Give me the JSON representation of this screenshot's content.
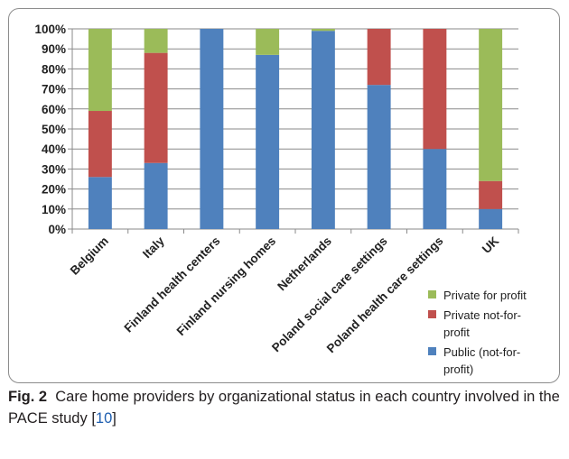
{
  "chart_data": {
    "type": "bar",
    "stacked": true,
    "categories": [
      "Belgium",
      "Italy",
      "Finland health centers",
      "Finland nursing homes",
      "Netherlands",
      "Poland social care settings",
      "Poland health care settings",
      "UK"
    ],
    "series": [
      {
        "name": "Public (not-for-profit)",
        "color": "#4f81bd",
        "values": [
          26,
          33,
          100,
          87,
          99,
          72,
          40,
          10
        ]
      },
      {
        "name": "Private not-for-profit",
        "color": "#c0504d",
        "values": [
          33,
          55,
          0,
          0,
          0,
          28,
          60,
          14
        ]
      },
      {
        "name": "Private for profit",
        "color": "#9bbb59",
        "values": [
          41,
          12,
          0,
          13,
          1,
          0,
          0,
          76
        ]
      }
    ],
    "ylim": [
      0,
      100
    ],
    "yticks": [
      "0%",
      "10%",
      "20%",
      "30%",
      "40%",
      "50%",
      "60%",
      "70%",
      "80%",
      "90%",
      "100%"
    ],
    "grid": true,
    "legend_position": "bottom-right"
  },
  "legend": [
    {
      "label": "Private for profit",
      "color": "#9bbb59"
    },
    {
      "label": "Private not-for-profit",
      "color": "#c0504d"
    },
    {
      "label": "Public (not-for-profit)",
      "color": "#4f81bd"
    }
  ],
  "caption": {
    "fig_label": "Fig. 2",
    "text": "Care home providers by organizational status in each country involved in the PACE study [",
    "ref": "10",
    "close": "]"
  }
}
